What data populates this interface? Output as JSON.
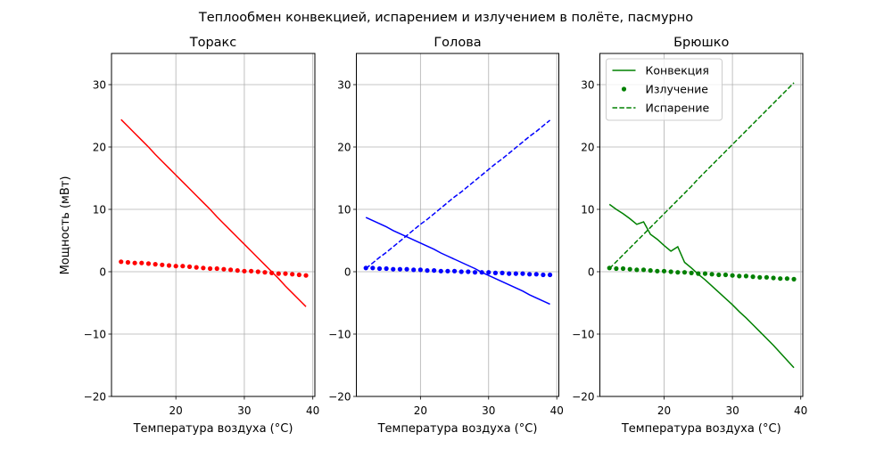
{
  "figure": {
    "suptitle": "Теплообмен конвекцией, испарением и излучением в полёте, пасмурно",
    "ylabel": "Мощность (мВт)",
    "legend": {
      "convection": "Конвекция",
      "radiation": "Излучение",
      "evaporation": "Испарение"
    }
  },
  "chart_data": [
    {
      "type": "line",
      "title": "Торакс",
      "xlabel": "Температура воздуха (°C)",
      "ylabel": "Мощность (мВт)",
      "xlim": [
        10.6,
        40.3
      ],
      "ylim": [
        -20,
        35
      ],
      "xticks": [
        20,
        30,
        40
      ],
      "yticks": [
        -20,
        -10,
        0,
        10,
        20,
        30
      ],
      "grid": true,
      "color": "#ff0000",
      "x": [
        12,
        13,
        14,
        15,
        16,
        17,
        18,
        19,
        20,
        21,
        22,
        23,
        24,
        25,
        26,
        27,
        28,
        29,
        30,
        31,
        32,
        33,
        34,
        35,
        36,
        37,
        38,
        39
      ],
      "series": [
        {
          "name": "Конвекция",
          "style": "solid",
          "values": [
            24.4,
            23.3,
            22.2,
            21.1,
            20.0,
            18.8,
            17.7,
            16.6,
            15.5,
            14.4,
            13.3,
            12.2,
            11.1,
            10.0,
            8.8,
            7.7,
            6.6,
            5.5,
            4.4,
            3.3,
            2.2,
            1.1,
            0.0,
            -1.1,
            -2.3,
            -3.4,
            -4.5,
            -5.6
          ]
        },
        {
          "name": "Излучение",
          "style": "dots",
          "values": [
            1.6,
            1.5,
            1.4,
            1.4,
            1.3,
            1.2,
            1.1,
            1.0,
            0.9,
            0.9,
            0.8,
            0.7,
            0.6,
            0.5,
            0.5,
            0.4,
            0.3,
            0.2,
            0.1,
            0.1,
            0.0,
            -0.1,
            -0.2,
            -0.3,
            -0.3,
            -0.4,
            -0.5,
            -0.6
          ]
        }
      ]
    },
    {
      "type": "line",
      "title": "Голова",
      "xlabel": "Температура воздуха (°C)",
      "xlim": [
        10.6,
        40.3
      ],
      "ylim": [
        -20,
        35
      ],
      "xticks": [
        20,
        30,
        40
      ],
      "yticks": [
        -20,
        -10,
        0,
        10,
        20,
        30
      ],
      "grid": true,
      "color": "#0000ff",
      "x": [
        12,
        13,
        14,
        15,
        16,
        17,
        18,
        19,
        20,
        21,
        22,
        23,
        24,
        25,
        26,
        27,
        28,
        29,
        30,
        31,
        32,
        33,
        34,
        35,
        36,
        37,
        38,
        39
      ],
      "series": [
        {
          "name": "Конвекция",
          "style": "solid",
          "values": [
            8.7,
            8.2,
            7.7,
            7.2,
            6.6,
            6.1,
            5.6,
            5.1,
            4.6,
            4.1,
            3.6,
            3.0,
            2.5,
            2.0,
            1.5,
            1.0,
            0.5,
            -0.1,
            -0.6,
            -1.1,
            -1.6,
            -2.1,
            -2.6,
            -3.1,
            -3.7,
            -4.2,
            -4.7,
            -5.2
          ]
        },
        {
          "name": "Излучение",
          "style": "dots",
          "values": [
            0.6,
            0.6,
            0.5,
            0.5,
            0.4,
            0.4,
            0.4,
            0.3,
            0.3,
            0.2,
            0.2,
            0.1,
            0.1,
            0.1,
            0.0,
            0.0,
            -0.1,
            -0.1,
            -0.1,
            -0.2,
            -0.2,
            -0.3,
            -0.3,
            -0.3,
            -0.4,
            -0.4,
            -0.5,
            -0.5
          ]
        },
        {
          "name": "Испарение",
          "style": "dashed",
          "values": [
            0.5,
            1.4,
            2.3,
            3.1,
            4.0,
            4.9,
            5.8,
            6.7,
            7.6,
            8.4,
            9.3,
            10.2,
            11.1,
            12.0,
            12.8,
            13.7,
            14.6,
            15.5,
            16.4,
            17.3,
            18.1,
            19.0,
            19.9,
            20.8,
            21.7,
            22.5,
            23.4,
            24.3
          ]
        }
      ]
    },
    {
      "type": "line",
      "title": "Брюшко",
      "xlabel": "Температура воздуха (°C)",
      "xlim": [
        10.6,
        40.3
      ],
      "ylim": [
        -20,
        35
      ],
      "xticks": [
        20,
        30,
        40
      ],
      "yticks": [
        -20,
        -10,
        0,
        10,
        20,
        30
      ],
      "grid": true,
      "legend_position": "upper left",
      "color": "#008000",
      "x": [
        12,
        13,
        14,
        15,
        16,
        17,
        18,
        19,
        20,
        21,
        22,
        23,
        24,
        25,
        26,
        27,
        28,
        29,
        30,
        31,
        32,
        33,
        34,
        35,
        36,
        37,
        38,
        39
      ],
      "series": [
        {
          "name": "Конвекция",
          "style": "solid",
          "values": [
            10.8,
            10.0,
            9.3,
            8.5,
            7.6,
            8.0,
            6.0,
            5.2,
            4.2,
            3.3,
            4.0,
            1.5,
            0.6,
            -0.4,
            -1.3,
            -2.3,
            -3.3,
            -4.3,
            -5.3,
            -6.4,
            -7.4,
            -8.5,
            -9.6,
            -10.7,
            -11.8,
            -13.0,
            -14.2,
            -15.4
          ]
        },
        {
          "name": "Излучение",
          "style": "dots",
          "values": [
            0.6,
            0.5,
            0.5,
            0.4,
            0.3,
            0.3,
            0.2,
            0.1,
            0.1,
            0.0,
            -0.1,
            -0.1,
            -0.2,
            -0.3,
            -0.3,
            -0.4,
            -0.5,
            -0.5,
            -0.6,
            -0.7,
            -0.7,
            -0.8,
            -0.9,
            -0.9,
            -1.0,
            -1.1,
            -1.1,
            -1.2
          ]
        },
        {
          "name": "Испарение",
          "style": "dashed",
          "values": [
            0.5,
            1.6,
            2.7,
            3.8,
            4.9,
            6.0,
            7.1,
            8.2,
            9.3,
            10.4,
            11.5,
            12.6,
            13.7,
            14.9,
            16.0,
            17.1,
            18.2,
            19.3,
            20.4,
            21.5,
            22.6,
            23.7,
            24.8,
            25.9,
            27.0,
            28.1,
            29.2,
            30.3
          ]
        }
      ]
    }
  ]
}
